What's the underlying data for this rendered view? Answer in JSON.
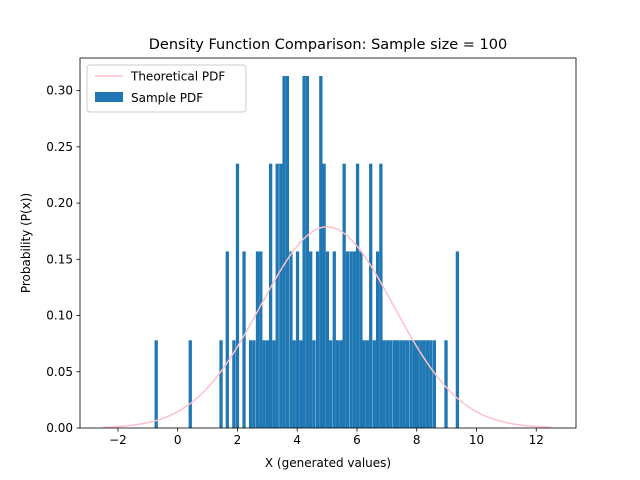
{
  "chart_data": {
    "type": "bar",
    "title": "Density Function Comparison: Sample size = 100",
    "xlabel": "X (generated values)",
    "ylabel": "Probability (P(x))",
    "xlim": [
      -3.27,
      13.33
    ],
    "ylim": [
      0,
      0.329
    ],
    "xticks": [
      -2,
      0,
      2,
      4,
      6,
      8,
      10,
      12
    ],
    "xtick_labels": [
      "−2",
      "0",
      "2",
      "4",
      "6",
      "8",
      "10",
      "12"
    ],
    "yticks": [
      0.0,
      0.05,
      0.1,
      0.15,
      0.2,
      0.25,
      0.3
    ],
    "ytick_labels": [
      "0.00",
      "0.05",
      "0.10",
      "0.15",
      "0.20",
      "0.25",
      "0.30"
    ],
    "bar_width": 0.11,
    "legend": {
      "position": "upper-left",
      "entries": [
        {
          "label": "Theoretical PDF",
          "kind": "line"
        },
        {
          "label": "Sample PDF",
          "kind": "bar"
        }
      ]
    },
    "series": [
      {
        "name": "Sample PDF",
        "kind": "bar",
        "color": "#1f77b4",
        "x": [
          -0.72,
          0.42,
          1.45,
          1.66,
          1.88,
          2.0,
          2.22,
          2.44,
          2.55,
          2.67,
          2.78,
          2.89,
          3.0,
          3.11,
          3.22,
          3.33,
          3.45,
          3.56,
          3.67,
          3.79,
          3.9,
          4.01,
          4.12,
          4.23,
          4.34,
          4.45,
          4.56,
          4.68,
          4.79,
          4.9,
          5.01,
          5.12,
          5.24,
          5.35,
          5.46,
          5.57,
          5.68,
          5.8,
          5.91,
          6.02,
          6.13,
          6.24,
          6.35,
          6.46,
          6.58,
          6.69,
          6.8,
          6.91,
          7.02,
          7.13,
          7.25,
          7.36,
          7.47,
          7.58,
          7.69,
          7.81,
          7.92,
          8.03,
          8.14,
          8.25,
          8.36,
          8.47,
          8.59,
          8.98,
          9.36
        ],
        "values": [
          0.078,
          0.078,
          0.078,
          0.157,
          0.078,
          0.235,
          0.157,
          0.078,
          0.078,
          0.157,
          0.157,
          0.078,
          0.078,
          0.235,
          0.078,
          0.235,
          0.235,
          0.313,
          0.313,
          0.157,
          0.078,
          0.157,
          0.078,
          0.313,
          0.313,
          0.157,
          0.078,
          0.157,
          0.313,
          0.235,
          0.157,
          0.078,
          0.157,
          0.078,
          0.078,
          0.235,
          0.157,
          0.157,
          0.157,
          0.235,
          0.157,
          0.078,
          0.078,
          0.235,
          0.078,
          0.157,
          0.235,
          0.078,
          0.078,
          0.078,
          0.078,
          0.078,
          0.078,
          0.078,
          0.078,
          0.078,
          0.078,
          0.078,
          0.078,
          0.078,
          0.078,
          0.078,
          0.078,
          0.078,
          0.157
        ]
      },
      {
        "name": "Theoretical PDF",
        "kind": "line",
        "color": "#ffc0cb",
        "distribution": "normal",
        "mean": 5.0,
        "std": 2.23,
        "x_range": [
          -2.5,
          12.5
        ]
      }
    ]
  }
}
